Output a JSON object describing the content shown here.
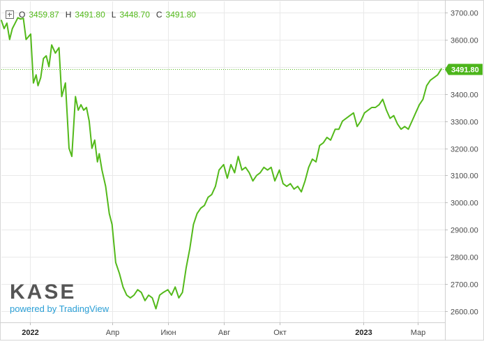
{
  "legend": {
    "o_label": "O",
    "o_value": "3459.87",
    "h_label": "H",
    "h_value": "3491.80",
    "l_label": "L",
    "l_value": "3448.70",
    "c_label": "C",
    "c_value": "3491.80"
  },
  "logo": {
    "brand": "KASE",
    "powered": "powered by TradingView"
  },
  "colors": {
    "line": "#53b91a",
    "last_badge": "#4cb51b",
    "grid": "#e9e9e9"
  },
  "chart_data": {
    "type": "line",
    "x_start": "2021-12-01",
    "x_end": "2023-03-31",
    "ylim": [
      2560,
      3740
    ],
    "y_ticks": [
      "3700.00",
      "3600.00",
      "3500.00",
      "3400.00",
      "3300.00",
      "3200.00",
      "3100.00",
      "3000.00",
      "2900.00",
      "2800.00",
      "2700.00",
      "2600.00"
    ],
    "x_ticks": [
      {
        "date": "2022-01-01",
        "label": "2022"
      },
      {
        "date": "2022-04-01",
        "label": "Апр"
      },
      {
        "date": "2022-06-01",
        "label": "Июн"
      },
      {
        "date": "2022-08-01",
        "label": "Авг"
      },
      {
        "date": "2022-10-01",
        "label": "Окт"
      },
      {
        "date": "2023-01-01",
        "label": "2023"
      },
      {
        "date": "2023-03-01",
        "label": "Мар"
      }
    ],
    "last_value": 3491.8,
    "last_label": "3491.80",
    "grid": true,
    "series": [
      {
        "x": [
          "2021-12-01",
          "2021-12-04",
          "2021-12-07",
          "2021-12-10",
          "2021-12-13",
          "2021-12-16",
          "2021-12-19",
          "2021-12-22",
          "2021-12-25",
          "2021-12-28",
          "2022-01-02",
          "2022-01-05",
          "2022-01-08",
          "2022-01-10",
          "2022-01-13",
          "2022-01-16",
          "2022-01-19",
          "2022-01-22",
          "2022-01-25",
          "2022-01-29",
          "2022-02-02",
          "2022-02-05",
          "2022-02-09",
          "2022-02-13",
          "2022-02-16",
          "2022-02-20",
          "2022-02-23",
          "2022-02-26",
          "2022-03-01",
          "2022-03-04",
          "2022-03-07",
          "2022-03-10",
          "2022-03-13",
          "2022-03-16",
          "2022-03-18",
          "2022-03-21",
          "2022-03-25",
          "2022-03-29",
          "2022-04-01",
          "2022-04-05",
          "2022-04-09",
          "2022-04-13",
          "2022-04-17",
          "2022-04-21",
          "2022-04-25",
          "2022-04-29",
          "2022-05-03",
          "2022-05-07",
          "2022-05-11",
          "2022-05-15",
          "2022-05-19",
          "2022-05-23",
          "2022-05-27",
          "2022-06-01",
          "2022-06-05",
          "2022-06-09",
          "2022-06-13",
          "2022-06-17",
          "2022-06-21",
          "2022-06-25",
          "2022-06-29",
          "2022-07-03",
          "2022-07-07",
          "2022-07-11",
          "2022-07-15",
          "2022-07-19",
          "2022-07-23",
          "2022-07-27",
          "2022-08-01",
          "2022-08-05",
          "2022-08-09",
          "2022-08-13",
          "2022-08-17",
          "2022-08-21",
          "2022-08-25",
          "2022-08-29",
          "2022-09-02",
          "2022-09-06",
          "2022-09-10",
          "2022-09-14",
          "2022-09-18",
          "2022-09-22",
          "2022-09-26",
          "2022-10-01",
          "2022-10-05",
          "2022-10-09",
          "2022-10-13",
          "2022-10-17",
          "2022-10-21",
          "2022-10-25",
          "2022-10-29",
          "2022-11-02",
          "2022-11-06",
          "2022-11-10",
          "2022-11-14",
          "2022-11-18",
          "2022-11-22",
          "2022-11-26",
          "2022-12-01",
          "2022-12-05",
          "2022-12-09",
          "2022-12-13",
          "2022-12-17",
          "2022-12-21",
          "2022-12-25",
          "2022-12-29",
          "2023-01-02",
          "2023-01-06",
          "2023-01-10",
          "2023-01-14",
          "2023-01-18",
          "2023-01-22",
          "2023-01-26",
          "2023-01-30",
          "2023-02-03",
          "2023-02-07",
          "2023-02-11",
          "2023-02-15",
          "2023-02-19",
          "2023-02-23",
          "2023-02-27",
          "2023-03-03",
          "2023-03-07",
          "2023-03-11",
          "2023-03-15",
          "2023-03-19",
          "2023-03-23",
          "2023-03-27"
        ],
        "y": [
          3670,
          3640,
          3660,
          3600,
          3640,
          3660,
          3680,
          3675,
          3678,
          3600,
          3620,
          3440,
          3470,
          3430,
          3460,
          3530,
          3540,
          3500,
          3580,
          3550,
          3570,
          3390,
          3440,
          3200,
          3170,
          3390,
          3340,
          3360,
          3340,
          3350,
          3300,
          3200,
          3230,
          3150,
          3180,
          3120,
          3060,
          2960,
          2920,
          2780,
          2740,
          2690,
          2660,
          2650,
          2660,
          2680,
          2670,
          2640,
          2660,
          2650,
          2610,
          2660,
          2670,
          2680,
          2660,
          2690,
          2650,
          2670,
          2760,
          2830,
          2920,
          2960,
          2980,
          2990,
          3020,
          3030,
          3060,
          3120,
          3140,
          3090,
          3140,
          3110,
          3170,
          3120,
          3130,
          3110,
          3080,
          3100,
          3110,
          3130,
          3120,
          3130,
          3080,
          3120,
          3070,
          3060,
          3070,
          3050,
          3060,
          3040,
          3080,
          3130,
          3160,
          3150,
          3210,
          3220,
          3240,
          3230,
          3270,
          3270,
          3300,
          3310,
          3320,
          3330,
          3280,
          3300,
          3330,
          3340,
          3350,
          3350,
          3360,
          3380,
          3340,
          3310,
          3320,
          3290,
          3270,
          3280,
          3270,
          3300,
          3330,
          3360,
          3380,
          3430,
          3450,
          3460,
          3470,
          3491.8
        ]
      }
    ]
  }
}
